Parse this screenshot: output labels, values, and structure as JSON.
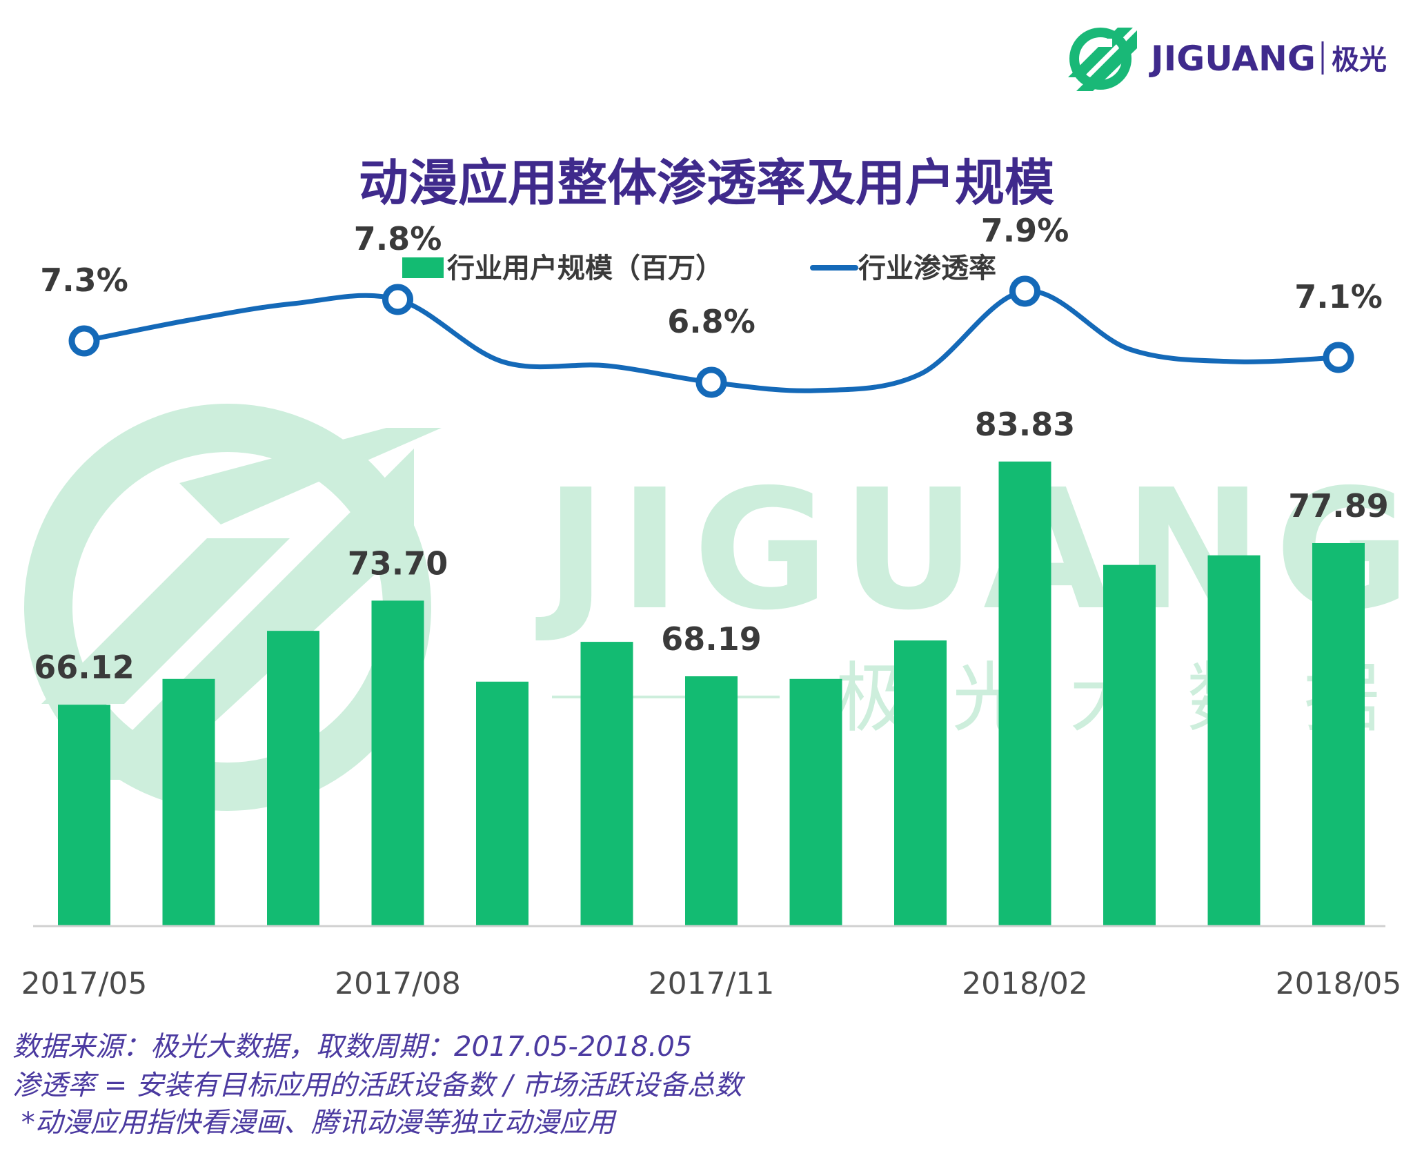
{
  "header": {
    "brand": "JIGUANG",
    "brand_cn": "极光"
  },
  "watermark": {
    "brand": "JIGUANG",
    "chars": [
      "极",
      "光",
      "大",
      "数",
      "据"
    ]
  },
  "colors": {
    "bar": "#13bb72",
    "line": "#1469b8",
    "title": "#3f2a8c",
    "note": "#4b3aa0",
    "watermark": "#cdeedc",
    "logo": "#19b877"
  },
  "legend": {
    "bar_label": "行业用户规模（百万）",
    "line_label": "行业渗透率"
  },
  "notes": [
    "数据来源：极光大数据，取数周期：2017.05-2018.05",
    "渗透率 = 安装有目标应用的活跃设备数 / 市场活跃设备总数",
    " *动漫应用指快看漫画、腾讯动漫等独立动漫应用"
  ],
  "chart_data": {
    "type": "bar+line",
    "title": "动漫应用整体渗透率及用户规模",
    "categories": [
      "2017/05",
      "2017/06",
      "2017/07",
      "2017/08",
      "2017/09",
      "2017/10",
      "2017/11",
      "2017/12",
      "2018/01",
      "2018/02",
      "2018/03",
      "2018/04",
      "2018/05"
    ],
    "tick_labels": [
      "2017/05",
      "",
      "",
      "2017/08",
      "",
      "",
      "2017/11",
      "",
      "",
      "2018/02",
      "",
      "",
      "2018/05"
    ],
    "series": [
      {
        "name": "行业用户规模（百万）",
        "kind": "bar",
        "values": [
          66.12,
          68.0,
          71.5,
          73.7,
          67.8,
          70.7,
          68.19,
          68.0,
          70.8,
          83.83,
          76.3,
          77.0,
          77.89
        ],
        "labels": [
          "66.12",
          "",
          "",
          "73.70",
          "",
          "",
          "68.19",
          "",
          "",
          "83.83",
          "",
          "",
          "77.89"
        ]
      },
      {
        "name": "行业渗透率",
        "kind": "line",
        "values": [
          7.3,
          7.55,
          7.75,
          7.8,
          7.05,
          7.0,
          6.8,
          6.7,
          6.9,
          7.9,
          7.2,
          7.05,
          7.1
        ],
        "labels": [
          "7.3%",
          "",
          "",
          "7.8%",
          "",
          "",
          "6.8%",
          "",
          "",
          "7.9%",
          "",
          "",
          "7.1%"
        ],
        "marked": [
          0,
          3,
          6,
          9,
          12
        ]
      }
    ],
    "ylim_bar": [
      0,
      90
    ],
    "ylim_line": [
      0,
      10
    ]
  }
}
